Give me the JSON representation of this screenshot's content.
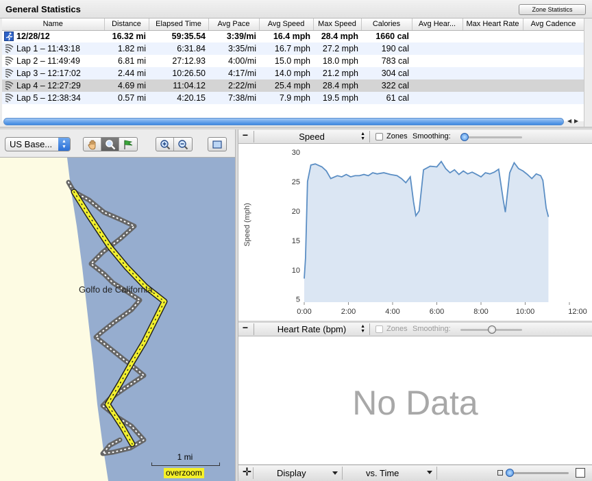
{
  "stats": {
    "title": "General Statistics",
    "zone_button": "Zone Statistics",
    "columns": [
      "Name",
      "Distance",
      "Elapsed Time",
      "Avg Pace",
      "Avg Speed",
      "Max Speed",
      "Calories",
      "Avg Hear...",
      "Max Heart Rate",
      "Avg Cadence"
    ],
    "rows": [
      {
        "name": "12/28/12",
        "distance": "16.32 mi",
        "elapsed": "59:35.54",
        "pace": "3:39/mi",
        "avg_speed": "16.4 mph",
        "max_speed": "28.4 mph",
        "calories": "1660 cal",
        "icon": "runner-icon"
      },
      {
        "name": "Lap 1 – 11:43:18",
        "distance": "1.82 mi",
        "elapsed": "6:31.84",
        "pace": "3:35/mi",
        "avg_speed": "16.7 mph",
        "max_speed": "27.2 mph",
        "calories": "190 cal",
        "icon": "lap-icon"
      },
      {
        "name": "Lap 2 – 11:49:49",
        "distance": "6.81 mi",
        "elapsed": "27:12.93",
        "pace": "4:00/mi",
        "avg_speed": "15.0 mph",
        "max_speed": "18.0 mph",
        "calories": "783 cal",
        "icon": "lap-icon"
      },
      {
        "name": "Lap 3 – 12:17:02",
        "distance": "2.44 mi",
        "elapsed": "10:26.50",
        "pace": "4:17/mi",
        "avg_speed": "14.0 mph",
        "max_speed": "21.2 mph",
        "calories": "304 cal",
        "icon": "lap-icon"
      },
      {
        "name": "Lap 4 – 12:27:29",
        "distance": "4.69 mi",
        "elapsed": "11:04.12",
        "pace": "2:22/mi",
        "avg_speed": "25.4 mph",
        "max_speed": "28.4 mph",
        "calories": "322 cal",
        "icon": "lap-icon"
      },
      {
        "name": "Lap 5 – 12:38:34",
        "distance": "0.57 mi",
        "elapsed": "4:20.15",
        "pace": "7:38/mi",
        "avg_speed": "7.9 mph",
        "max_speed": "19.5 mph",
        "calories": "61 cal",
        "icon": "lap-icon"
      }
    ]
  },
  "map": {
    "type_select": "US Base...",
    "label": "Golfo de California",
    "scale": "1 mi",
    "overzoom": "overzoom",
    "tools": [
      "hand-icon",
      "magnifier-icon",
      "flag-icon",
      "zoom-in-icon",
      "zoom-out-icon",
      "fit-icon"
    ],
    "colors": {
      "land": "#fdfbe3",
      "water": "#96adcf",
      "track": "#f2f02e",
      "track_outline": "#666666"
    }
  },
  "speed_pane": {
    "measure": "Speed",
    "zones": "Zones",
    "smoothing": "Smoothing:"
  },
  "hr_pane": {
    "measure": "Heart Rate (bpm)",
    "zones": "Zones",
    "smoothing": "Smoothing:",
    "no_data": "No Data"
  },
  "bottom": {
    "display": "Display",
    "vs": "vs. Time"
  },
  "chart_data": {
    "type": "area",
    "title": "",
    "xlabel": "",
    "ylabel": "Speed (mph)",
    "xlim": [
      0,
      12
    ],
    "ylim": [
      4.5,
      30
    ],
    "x_ticks": [
      "0:00",
      "2:00",
      "4:00",
      "6:00",
      "8:00",
      "10:00",
      "12:00"
    ],
    "y_ticks": [
      5,
      10,
      15,
      20,
      25,
      30
    ],
    "grid": false,
    "series": [
      {
        "x": [
          0,
          0.06,
          0.15,
          0.3,
          0.5,
          0.8,
          1.0,
          1.2,
          1.5,
          1.7,
          1.9,
          2.1,
          2.3,
          2.5,
          2.7,
          2.9,
          3.1,
          3.3,
          3.6,
          3.9,
          4.2,
          4.4,
          4.6,
          4.8,
          4.95,
          5.05,
          5.2,
          5.4,
          5.7,
          6.0,
          6.2,
          6.4,
          6.6,
          6.8,
          7.0,
          7.2,
          7.4,
          7.6,
          7.8,
          8.0,
          8.2,
          8.4,
          8.6,
          8.8,
          9.0,
          9.1,
          9.3,
          9.5,
          9.7,
          9.9,
          10.1,
          10.3,
          10.5,
          10.7,
          10.8,
          10.95,
          11.05
        ],
        "values": [
          8.5,
          12,
          25,
          27.8,
          28,
          27.5,
          26.8,
          25.5,
          26,
          25.8,
          26.2,
          25.8,
          26,
          26,
          26.2,
          26,
          26.5,
          26.3,
          26.5,
          26.2,
          26,
          25.5,
          24.8,
          25.8,
          21.5,
          19.2,
          20,
          27,
          27.6,
          27.5,
          28.4,
          27.2,
          26.5,
          27,
          26.2,
          26.8,
          26.3,
          26.6,
          26.2,
          25.8,
          26.5,
          26.3,
          26.6,
          27.1,
          22,
          19.8,
          26.5,
          28.2,
          27.2,
          26.8,
          26.2,
          25.5,
          26.3,
          26,
          25.2,
          20.5,
          19
        ]
      }
    ],
    "color": "#5b8ec4",
    "fill": "#dbe6f3"
  }
}
